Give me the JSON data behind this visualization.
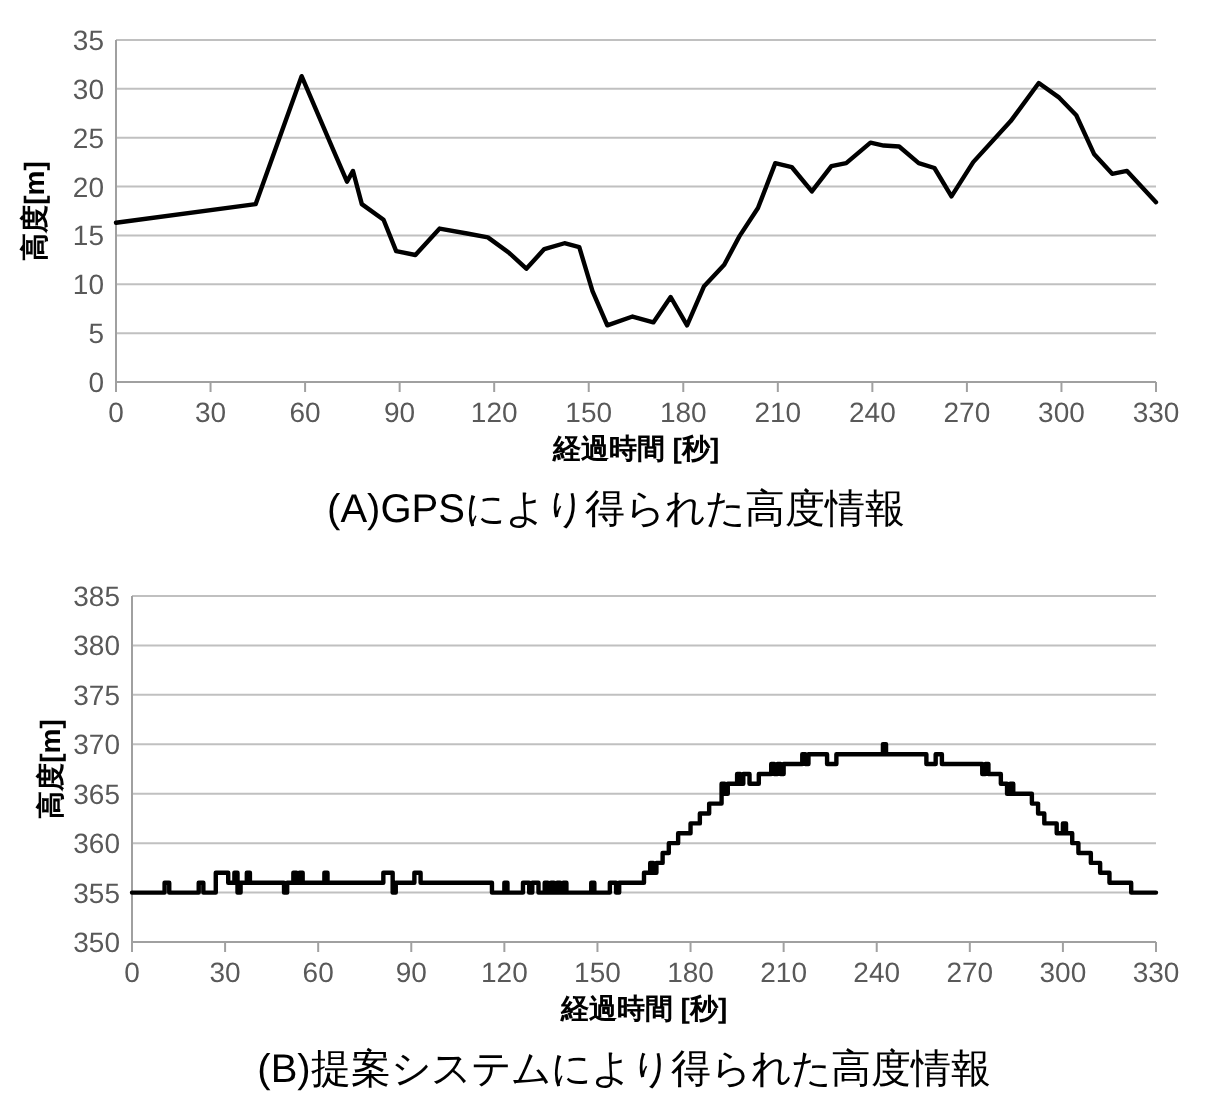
{
  "chart_data": [
    {
      "type": "line",
      "title": "(A)GPSにより得られた高度情報",
      "xlabel": "経過時間 [秒]",
      "ylabel": "高度[m]",
      "xlim": [
        0,
        330
      ],
      "xticks": [
        0,
        30,
        60,
        90,
        120,
        150,
        180,
        210,
        240,
        270,
        300,
        330
      ],
      "ylim": [
        0,
        35
      ],
      "yticks": [
        0,
        5,
        10,
        15,
        20,
        25,
        30,
        35
      ],
      "grid": "y",
      "marker": "none",
      "line_style": "solid",
      "series": [
        {
          "color": "#000000",
          "x": [
            0,
            44.3,
            58.9,
            69,
            73.3,
            75.2,
            78,
            84.9,
            88.9,
            95,
            102.7,
            111.4,
            118,
            124.8,
            130.2,
            135.9,
            142.3,
            147,
            151.2,
            155.9,
            163.9,
            170.5,
            176,
            181.2,
            186.6,
            193,
            197.8,
            203.7,
            209.2,
            214.4,
            220.8,
            227,
            231.7,
            239.4,
            243.6,
            248.5,
            254.7,
            259.7,
            265.1,
            272,
            283.9,
            292.8,
            299.3,
            304.7,
            310.4,
            316.1,
            320.8,
            330
          ],
          "values": [
            16.3,
            18.2,
            31.3,
            23.7,
            20.5,
            21.6,
            18.2,
            16.6,
            13.4,
            13.0,
            15.7,
            15.2,
            14.8,
            13.2,
            11.6,
            13.6,
            14.2,
            13.8,
            9.3,
            5.8,
            6.7,
            6.1,
            8.7,
            5.8,
            9.8,
            12.0,
            14.9,
            17.8,
            22.4,
            22.0,
            19.5,
            22.1,
            22.4,
            24.5,
            24.2,
            24.1,
            22.4,
            21.9,
            19.0,
            22.5,
            26.7,
            30.6,
            29.1,
            27.3,
            23.3,
            21.3,
            21.6,
            18.4
          ]
        }
      ]
    },
    {
      "type": "step",
      "title": "(B)提案システムにより得られた高度情報",
      "xlabel": "経過時間 [秒]",
      "ylabel": "高度[m]",
      "xlim": [
        0,
        330
      ],
      "xticks": [
        0,
        30,
        60,
        90,
        120,
        150,
        180,
        210,
        240,
        270,
        300,
        330
      ],
      "ylim": [
        350,
        385
      ],
      "yticks": [
        350,
        355,
        360,
        365,
        370,
        375,
        380,
        385
      ],
      "grid": "y",
      "marker": "none",
      "line_style": "solid",
      "series": [
        {
          "color": "#000000",
          "x": [
            0,
            10.5,
            12,
            21.5,
            23,
            27,
            31,
            33,
            34,
            35,
            37,
            38,
            49,
            50,
            52,
            53,
            54,
            55,
            62,
            63,
            81,
            84,
            85,
            91,
            93,
            116,
            120,
            121,
            126,
            128,
            129,
            131,
            133,
            134,
            135,
            136,
            137,
            138,
            139,
            140,
            148,
            149,
            154,
            156,
            157,
            165,
            167,
            168,
            169,
            171,
            173,
            176,
            180,
            183,
            186,
            190,
            191,
            192,
            195,
            196,
            197,
            199,
            202,
            206,
            207,
            208,
            209,
            210,
            216,
            217,
            218,
            224,
            227,
            242,
            243,
            256,
            259,
            261,
            274,
            275,
            276,
            280,
            282,
            283,
            284,
            290,
            292,
            294,
            298,
            300,
            301,
            303,
            305,
            309,
            312,
            315,
            322,
            330
          ],
          "values": [
            355,
            356,
            355,
            356,
            355,
            357,
            356,
            357,
            355,
            356,
            357,
            356,
            355,
            356,
            357,
            356,
            357,
            356,
            357,
            356,
            357,
            355,
            356,
            357,
            356,
            355,
            356,
            355,
            356,
            355,
            356,
            355,
            356,
            355,
            356,
            355,
            356,
            355,
            356,
            355,
            356,
            355,
            356,
            355,
            356,
            357,
            358,
            357,
            358,
            359,
            360,
            361,
            362,
            363,
            364,
            366,
            365,
            366,
            367,
            366,
            367,
            366,
            367,
            368,
            367,
            368,
            367,
            368,
            369,
            368,
            369,
            368,
            369,
            370,
            369,
            368,
            369,
            368,
            367,
            368,
            367,
            366,
            365,
            366,
            365,
            364,
            363,
            362,
            361,
            362,
            361,
            360,
            359,
            358,
            357,
            356,
            355,
            355
          ]
        }
      ]
    }
  ]
}
